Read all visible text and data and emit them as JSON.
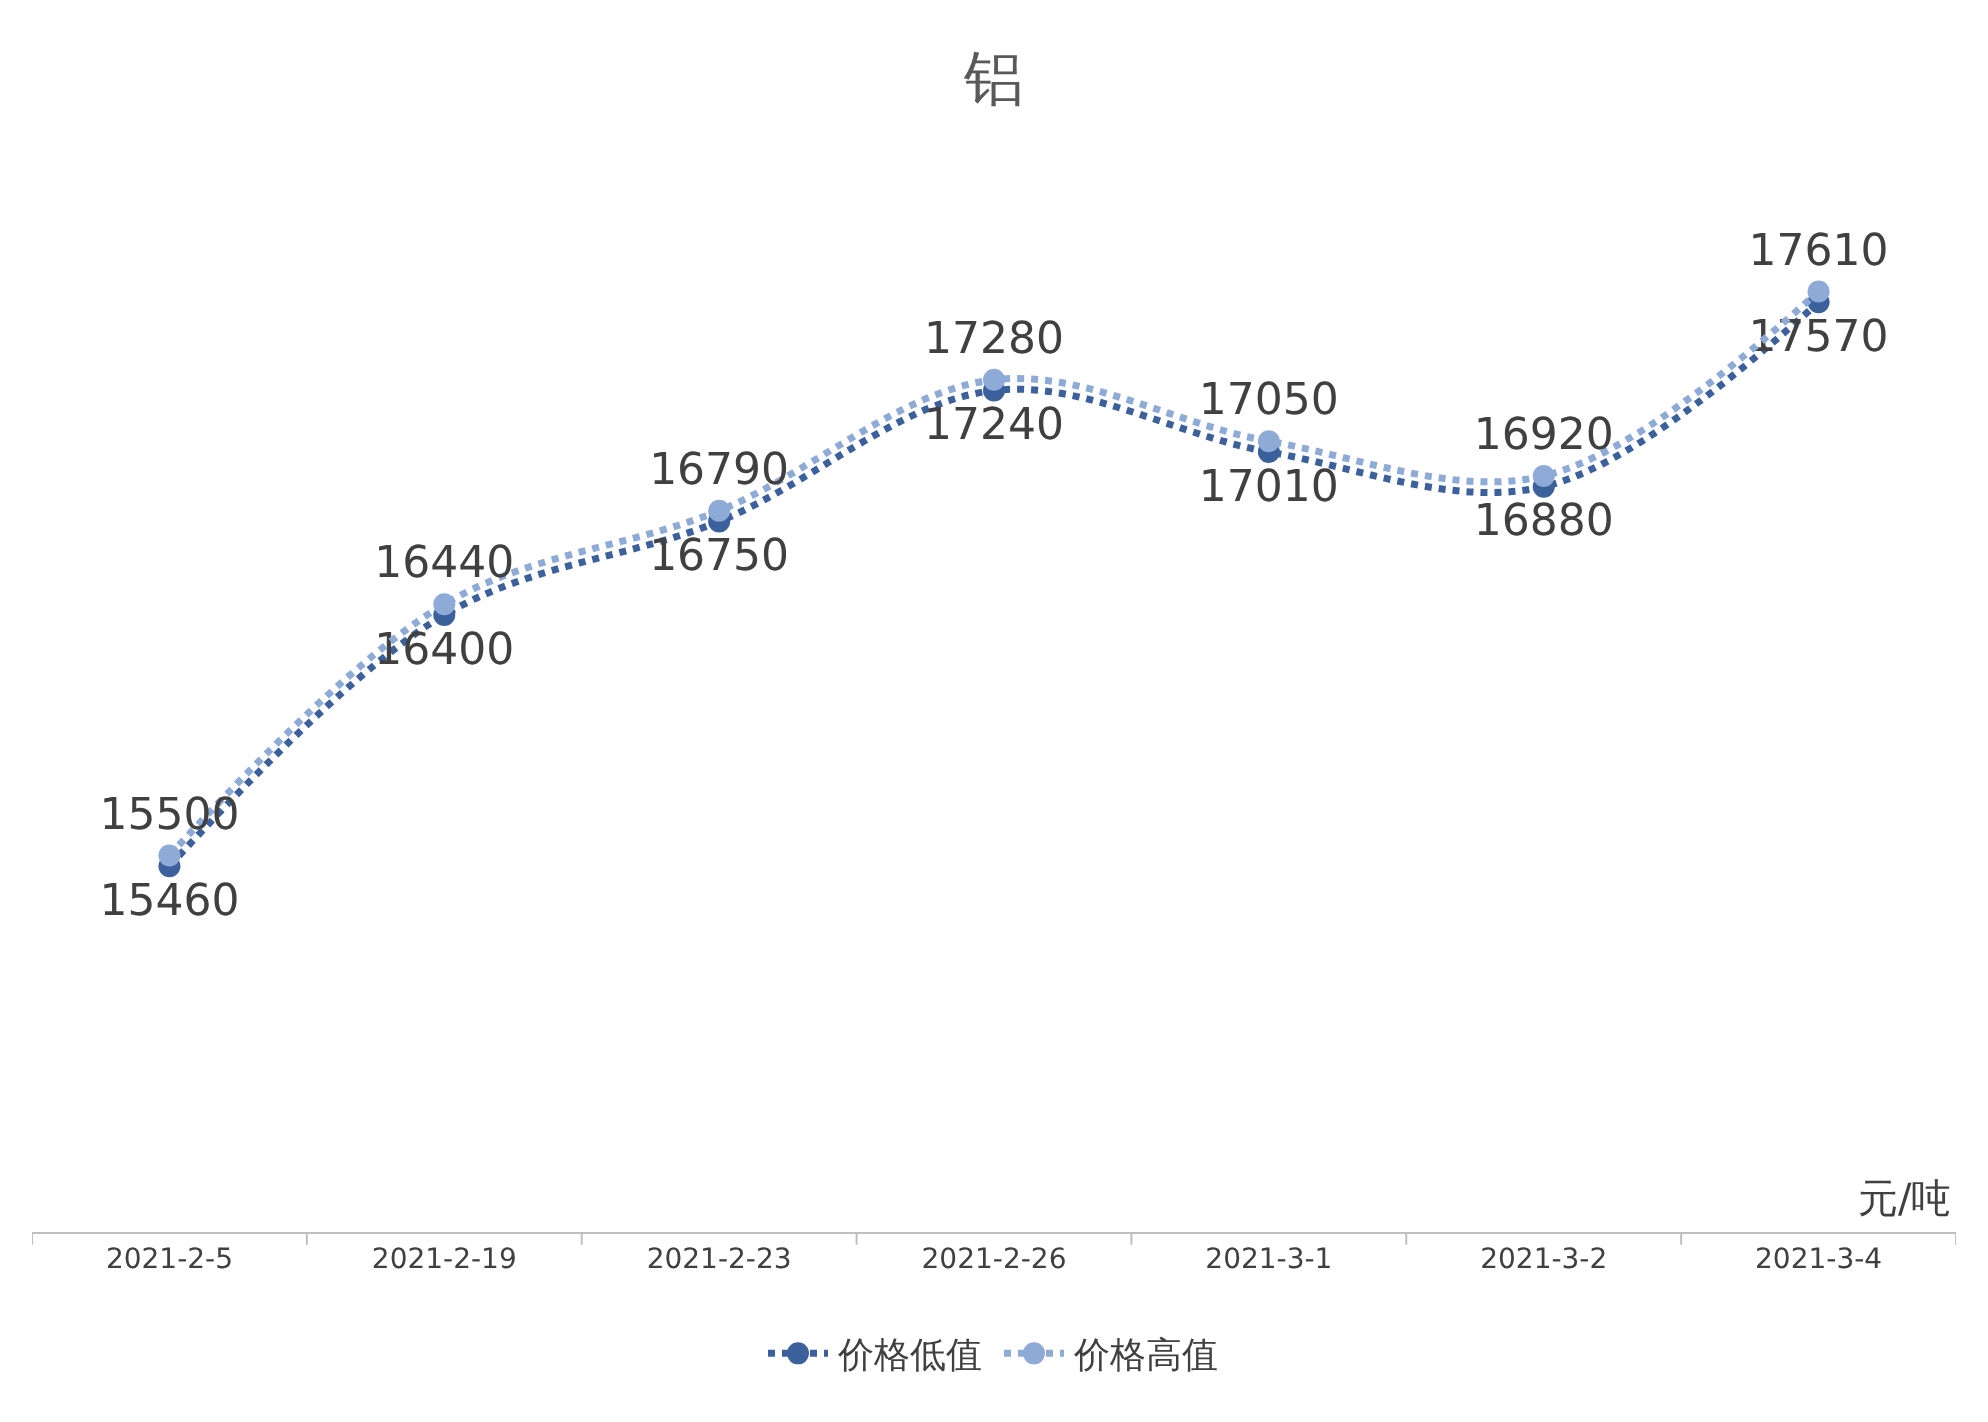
{
  "chart_data": {
    "type": "line",
    "title": "铝",
    "categories": [
      "2021-2-5",
      "2021-2-19",
      "2021-2-23",
      "2021-2-26",
      "2021-3-1",
      "2021-3-2",
      "2021-3-4"
    ],
    "series": [
      {
        "name": "价格低值",
        "color": "#3c609c",
        "values": [
          15460,
          16400,
          16750,
          17240,
          17010,
          16880,
          17570
        ]
      },
      {
        "name": "价格高值",
        "color": "#8eaad6",
        "values": [
          15500,
          16440,
          16790,
          17280,
          17050,
          16920,
          17610
        ]
      }
    ],
    "tick_labels": "x",
    "data_labels": true,
    "grid": false,
    "legend": "bottom",
    "marker": "circle",
    "line_style": "dotted",
    "annotations": [
      "元/吨"
    ]
  }
}
